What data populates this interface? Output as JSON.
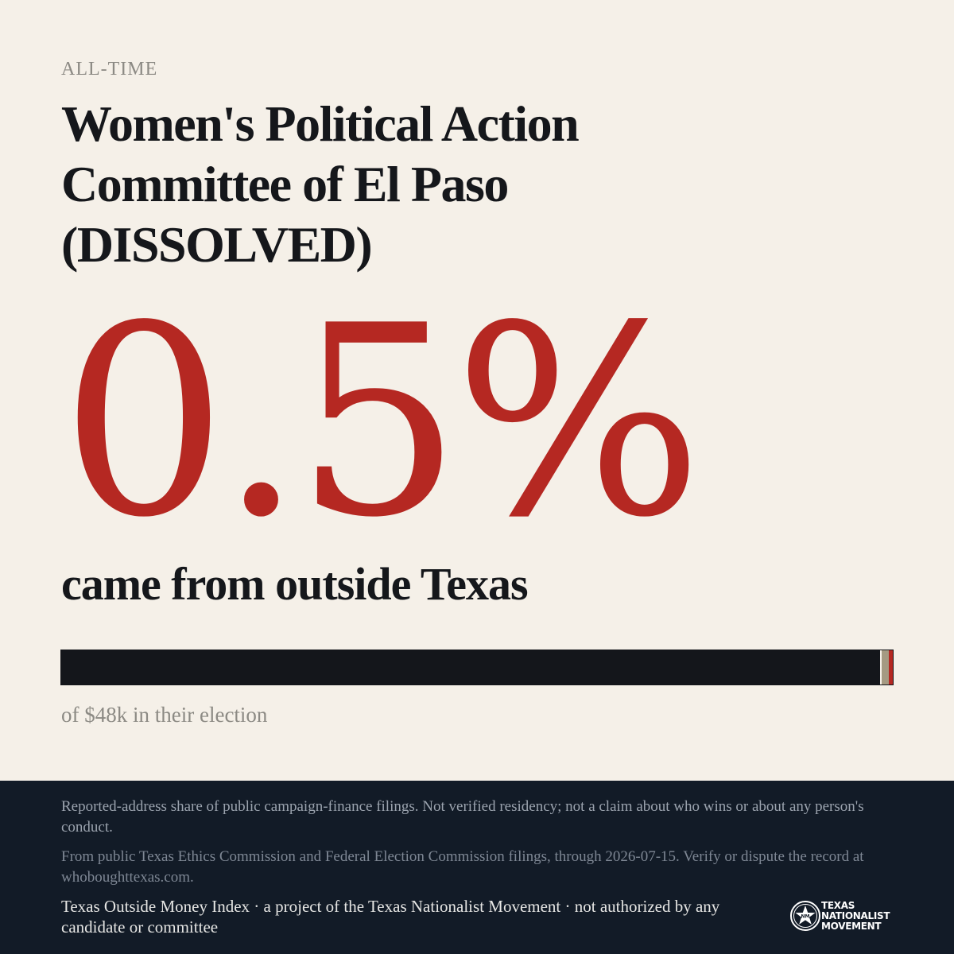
{
  "period_label": "ALL-TIME",
  "committee_name": "Women's Political Action Committee of El Paso (DISSOLVED)",
  "headline_percent": "0.5%",
  "headline_caption": "came from outside Texas",
  "bar": {
    "outside_share_percent": 0.5,
    "unknown_share_percent": 0.9,
    "colors": {
      "inside": "#14161b",
      "unknown": "#a59a82",
      "outside": "#b52822"
    }
  },
  "bar_caption": "of $48k in their election",
  "footer": {
    "disclaimer": "Reported-address share of public campaign-finance filings. Not verified residency; not a claim about who wins or about any person's conduct.",
    "source": "From public Texas Ethics Commission and Federal Election Commission filings, through 2026-07-15. Verify or dispute the record at whoboughttexas.com.",
    "credit": "Texas Outside Money Index · a project of the Texas Nationalist Movement · not authorized by any candidate or committee",
    "logo": {
      "icon": "star-seal-icon",
      "line1": "TEXAS",
      "line2": "NATIONALIST",
      "line3": "MOVEMENT"
    }
  },
  "colors": {
    "background": "#f5f0e8",
    "accent": "#b52822",
    "ink": "#15171b",
    "footer_background": "#121b27"
  }
}
